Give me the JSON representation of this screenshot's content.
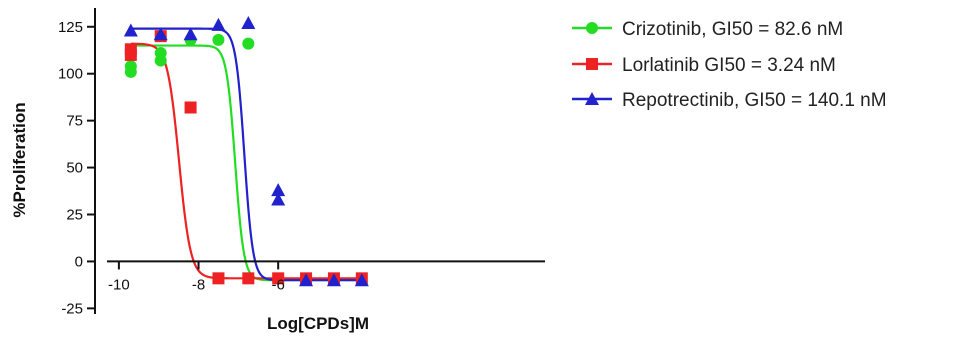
{
  "chart_data": {
    "type": "scatter",
    "xlabel": "Log[CPDs]M",
    "ylabel": "%Proliferation",
    "xlim": [
      -10.6,
      0.7
    ],
    "ylim": [
      -28,
      135
    ],
    "x_ticks": [
      -10,
      -8,
      -6
    ],
    "x_tick_labels": [
      "-10",
      "-8",
      "-6"
    ],
    "y_ticks": [
      -25,
      0,
      25,
      50,
      75,
      100,
      125
    ],
    "y_tick_labels": [
      "-25",
      "0",
      "25",
      "50",
      "75",
      "100",
      "125"
    ],
    "grid": false,
    "legend_position": "top-right",
    "series": [
      {
        "name": "Crizotinib, GI50 = 82.6 nM",
        "color": "#22dd22",
        "marker": "circle",
        "fit": {
          "top": 115,
          "bottom": -10,
          "logEC50": -7.08,
          "hill": -4
        },
        "points": [
          [
            -9.7,
            101
          ],
          [
            -9.7,
            104
          ],
          [
            -8.95,
            111
          ],
          [
            -8.95,
            107
          ],
          [
            -8.2,
            118
          ],
          [
            -7.5,
            118
          ],
          [
            -6.75,
            116
          ]
        ]
      },
      {
        "name": "Lorlatinib GI50 = 3.24 nM",
        "color": "#ee2222",
        "marker": "square",
        "fit": {
          "top": 116,
          "bottom": -9,
          "logEC50": -8.49,
          "hill": -3
        },
        "points": [
          [
            -9.7,
            110
          ],
          [
            -9.7,
            113
          ],
          [
            -8.95,
            120
          ],
          [
            -8.2,
            82
          ],
          [
            -7.5,
            -9
          ],
          [
            -6.75,
            -9
          ],
          [
            -6.0,
            -9
          ],
          [
            -5.3,
            -9
          ],
          [
            -4.6,
            -9
          ],
          [
            -3.9,
            -9
          ]
        ]
      },
      {
        "name": "Repotrectinib, GI50 = 140.1 nM",
        "color": "#2222cc",
        "marker": "triangle",
        "fit": {
          "top": 124,
          "bottom": -10,
          "logEC50": -6.85,
          "hill": -4
        },
        "points": [
          [
            -9.7,
            123
          ],
          [
            -8.95,
            121
          ],
          [
            -8.2,
            121
          ],
          [
            -7.5,
            126
          ],
          [
            -6.75,
            127
          ],
          [
            -6.0,
            38
          ],
          [
            -6.0,
            33
          ],
          [
            -5.3,
            -10
          ],
          [
            -4.6,
            -10
          ],
          [
            -3.9,
            -10
          ]
        ]
      }
    ]
  }
}
